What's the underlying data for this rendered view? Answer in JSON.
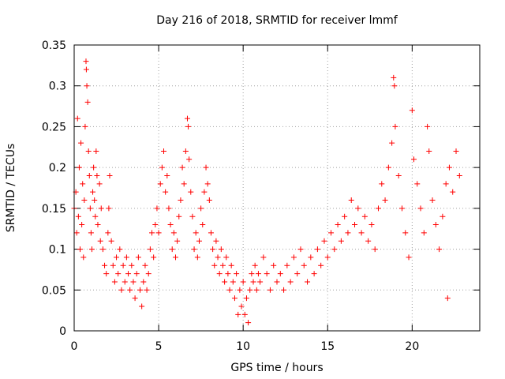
{
  "chart_data": {
    "type": "scatter",
    "title": "Day 216 of 2018, SRMTID for receiver lmmf",
    "xlabel": "GPS time / hours",
    "ylabel": "SRMTID / TECUs",
    "xlim": [
      0,
      24
    ],
    "ylim": [
      0,
      0.35
    ],
    "x_ticks": [
      0,
      5,
      10,
      15,
      20
    ],
    "x_tick_labels": [
      "0",
      "5",
      "10",
      "15",
      "20"
    ],
    "y_ticks": [
      0,
      0.05,
      0.1,
      0.15,
      0.2,
      0.25,
      0.3,
      0.35
    ],
    "y_tick_labels": [
      "0",
      "0.05",
      "0.1",
      "0.15",
      "0.2",
      "0.25",
      "0.3",
      "0.35"
    ],
    "grid": true,
    "marker": "+",
    "color": "#ff0000",
    "series": [
      {
        "name": "SRMTID",
        "points": [
          [
            0.0,
            0.15
          ],
          [
            0.1,
            0.17
          ],
          [
            0.15,
            0.12
          ],
          [
            0.2,
            0.26
          ],
          [
            0.25,
            0.14
          ],
          [
            0.3,
            0.2
          ],
          [
            0.35,
            0.1
          ],
          [
            0.4,
            0.23
          ],
          [
            0.45,
            0.13
          ],
          [
            0.5,
            0.18
          ],
          [
            0.55,
            0.09
          ],
          [
            0.6,
            0.16
          ],
          [
            0.65,
            0.25
          ],
          [
            0.7,
            0.33
          ],
          [
            0.72,
            0.32
          ],
          [
            0.75,
            0.3
          ],
          [
            0.8,
            0.28
          ],
          [
            0.85,
            0.22
          ],
          [
            0.9,
            0.19
          ],
          [
            0.95,
            0.15
          ],
          [
            1.0,
            0.12
          ],
          [
            1.05,
            0.1
          ],
          [
            1.1,
            0.17
          ],
          [
            1.15,
            0.2
          ],
          [
            1.2,
            0.16
          ],
          [
            1.25,
            0.14
          ],
          [
            1.3,
            0.22
          ],
          [
            1.35,
            0.19
          ],
          [
            1.4,
            0.13
          ],
          [
            1.5,
            0.18
          ],
          [
            1.55,
            0.11
          ],
          [
            1.6,
            0.15
          ],
          [
            1.7,
            0.1
          ],
          [
            1.8,
            0.08
          ],
          [
            1.9,
            0.07
          ],
          [
            2.0,
            0.12
          ],
          [
            2.05,
            0.15
          ],
          [
            2.1,
            0.19
          ],
          [
            2.2,
            0.11
          ],
          [
            2.3,
            0.08
          ],
          [
            2.4,
            0.06
          ],
          [
            2.5,
            0.09
          ],
          [
            2.6,
            0.07
          ],
          [
            2.7,
            0.1
          ],
          [
            2.8,
            0.05
          ],
          [
            2.9,
            0.08
          ],
          [
            3.0,
            0.06
          ],
          [
            3.1,
            0.09
          ],
          [
            3.2,
            0.07
          ],
          [
            3.3,
            0.05
          ],
          [
            3.4,
            0.08
          ],
          [
            3.5,
            0.06
          ],
          [
            3.6,
            0.04
          ],
          [
            3.7,
            0.07
          ],
          [
            3.8,
            0.09
          ],
          [
            3.9,
            0.05
          ],
          [
            4.0,
            0.03
          ],
          [
            4.1,
            0.06
          ],
          [
            4.2,
            0.08
          ],
          [
            4.3,
            0.05
          ],
          [
            4.4,
            0.07
          ],
          [
            4.5,
            0.1
          ],
          [
            4.6,
            0.12
          ],
          [
            4.7,
            0.09
          ],
          [
            4.8,
            0.13
          ],
          [
            4.9,
            0.15
          ],
          [
            5.0,
            0.12
          ],
          [
            5.1,
            0.18
          ],
          [
            5.2,
            0.2
          ],
          [
            5.3,
            0.22
          ],
          [
            5.4,
            0.17
          ],
          [
            5.5,
            0.19
          ],
          [
            5.6,
            0.15
          ],
          [
            5.7,
            0.13
          ],
          [
            5.8,
            0.1
          ],
          [
            5.9,
            0.12
          ],
          [
            6.0,
            0.09
          ],
          [
            6.1,
            0.11
          ],
          [
            6.2,
            0.14
          ],
          [
            6.3,
            0.16
          ],
          [
            6.4,
            0.2
          ],
          [
            6.5,
            0.18
          ],
          [
            6.6,
            0.22
          ],
          [
            6.7,
            0.26
          ],
          [
            6.75,
            0.25
          ],
          [
            6.8,
            0.21
          ],
          [
            6.9,
            0.17
          ],
          [
            7.0,
            0.14
          ],
          [
            7.1,
            0.1
          ],
          [
            7.2,
            0.12
          ],
          [
            7.3,
            0.09
          ],
          [
            7.4,
            0.11
          ],
          [
            7.5,
            0.15
          ],
          [
            7.6,
            0.13
          ],
          [
            7.7,
            0.17
          ],
          [
            7.8,
            0.2
          ],
          [
            7.9,
            0.18
          ],
          [
            8.0,
            0.16
          ],
          [
            8.1,
            0.12
          ],
          [
            8.2,
            0.1
          ],
          [
            8.3,
            0.08
          ],
          [
            8.4,
            0.11
          ],
          [
            8.5,
            0.09
          ],
          [
            8.6,
            0.07
          ],
          [
            8.7,
            0.1
          ],
          [
            8.8,
            0.08
          ],
          [
            8.9,
            0.06
          ],
          [
            9.0,
            0.09
          ],
          [
            9.1,
            0.07
          ],
          [
            9.2,
            0.05
          ],
          [
            9.3,
            0.08
          ],
          [
            9.4,
            0.06
          ],
          [
            9.5,
            0.04
          ],
          [
            9.6,
            0.07
          ],
          [
            9.7,
            0.02
          ],
          [
            9.8,
            0.05
          ],
          [
            9.9,
            0.03
          ],
          [
            10.0,
            0.06
          ],
          [
            10.1,
            0.02
          ],
          [
            10.2,
            0.04
          ],
          [
            10.3,
            0.01
          ],
          [
            10.4,
            0.05
          ],
          [
            10.5,
            0.07
          ],
          [
            10.6,
            0.06
          ],
          [
            10.7,
            0.08
          ],
          [
            10.8,
            0.05
          ],
          [
            10.9,
            0.07
          ],
          [
            11.0,
            0.06
          ],
          [
            11.2,
            0.09
          ],
          [
            11.4,
            0.07
          ],
          [
            11.6,
            0.05
          ],
          [
            11.8,
            0.08
          ],
          [
            12.0,
            0.06
          ],
          [
            12.2,
            0.07
          ],
          [
            12.4,
            0.05
          ],
          [
            12.6,
            0.08
          ],
          [
            12.8,
            0.06
          ],
          [
            13.0,
            0.09
          ],
          [
            13.2,
            0.07
          ],
          [
            13.4,
            0.1
          ],
          [
            13.6,
            0.08
          ],
          [
            13.8,
            0.06
          ],
          [
            14.0,
            0.09
          ],
          [
            14.2,
            0.07
          ],
          [
            14.4,
            0.1
          ],
          [
            14.6,
            0.08
          ],
          [
            14.8,
            0.11
          ],
          [
            15.0,
            0.09
          ],
          [
            15.2,
            0.12
          ],
          [
            15.4,
            0.1
          ],
          [
            15.6,
            0.13
          ],
          [
            15.8,
            0.11
          ],
          [
            16.0,
            0.14
          ],
          [
            16.2,
            0.12
          ],
          [
            16.4,
            0.16
          ],
          [
            16.6,
            0.13
          ],
          [
            16.8,
            0.15
          ],
          [
            17.0,
            0.12
          ],
          [
            17.2,
            0.14
          ],
          [
            17.4,
            0.11
          ],
          [
            17.6,
            0.13
          ],
          [
            17.8,
            0.1
          ],
          [
            18.0,
            0.15
          ],
          [
            18.2,
            0.18
          ],
          [
            18.4,
            0.16
          ],
          [
            18.6,
            0.2
          ],
          [
            18.8,
            0.23
          ],
          [
            18.9,
            0.31
          ],
          [
            18.95,
            0.3
          ],
          [
            19.0,
            0.25
          ],
          [
            19.2,
            0.19
          ],
          [
            19.4,
            0.15
          ],
          [
            19.6,
            0.12
          ],
          [
            19.8,
            0.09
          ],
          [
            20.0,
            0.27
          ],
          [
            20.1,
            0.21
          ],
          [
            20.3,
            0.18
          ],
          [
            20.5,
            0.15
          ],
          [
            20.7,
            0.12
          ],
          [
            20.9,
            0.25
          ],
          [
            21.0,
            0.22
          ],
          [
            21.2,
            0.16
          ],
          [
            21.4,
            0.13
          ],
          [
            21.6,
            0.1
          ],
          [
            21.8,
            0.14
          ],
          [
            22.0,
            0.18
          ],
          [
            22.1,
            0.04
          ],
          [
            22.2,
            0.2
          ],
          [
            22.4,
            0.17
          ],
          [
            22.6,
            0.22
          ],
          [
            22.8,
            0.19
          ]
        ]
      }
    ]
  }
}
